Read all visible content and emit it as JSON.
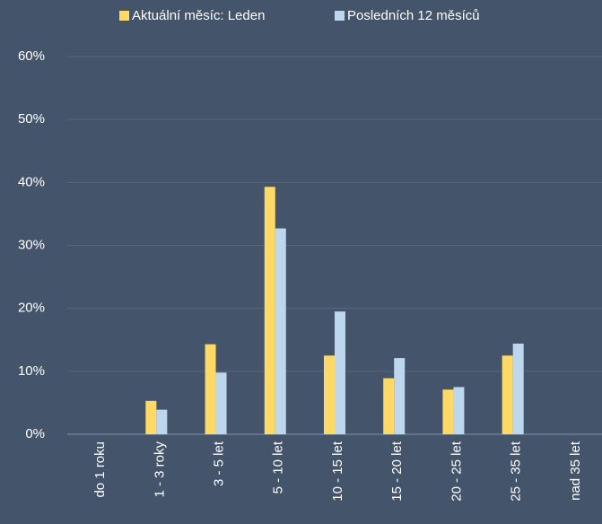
{
  "chart_data": {
    "type": "bar",
    "categories": [
      "do 1 roku",
      "1 - 3 roky",
      "3 - 5 let",
      "5 - 10 let",
      "10 - 15 let",
      "15 - 20 let",
      "20 - 25 let",
      "25 - 35 let",
      "nad 35 let"
    ],
    "series": [
      {
        "name": "Aktuální měsíc: Leden",
        "color": "#ffd966",
        "values": [
          0,
          5.3,
          14.3,
          39.3,
          12.5,
          8.9,
          7.1,
          12.5,
          0
        ]
      },
      {
        "name": "Posledních 12 měsíců",
        "color": "#bdd7ee",
        "values": [
          0,
          3.9,
          9.8,
          32.7,
          19.5,
          12.1,
          7.5,
          14.4,
          0
        ]
      }
    ],
    "ylim": [
      0,
      60
    ],
    "yticks": [
      {
        "value": 0,
        "label": "0%"
      },
      {
        "value": 10,
        "label": "10%"
      },
      {
        "value": 20,
        "label": "20%"
      },
      {
        "value": 30,
        "label": "30%"
      },
      {
        "value": 40,
        "label": "40%"
      },
      {
        "value": 50,
        "label": "50%"
      },
      {
        "value": 60,
        "label": "60%"
      }
    ],
    "grid": true,
    "legend": "top"
  }
}
